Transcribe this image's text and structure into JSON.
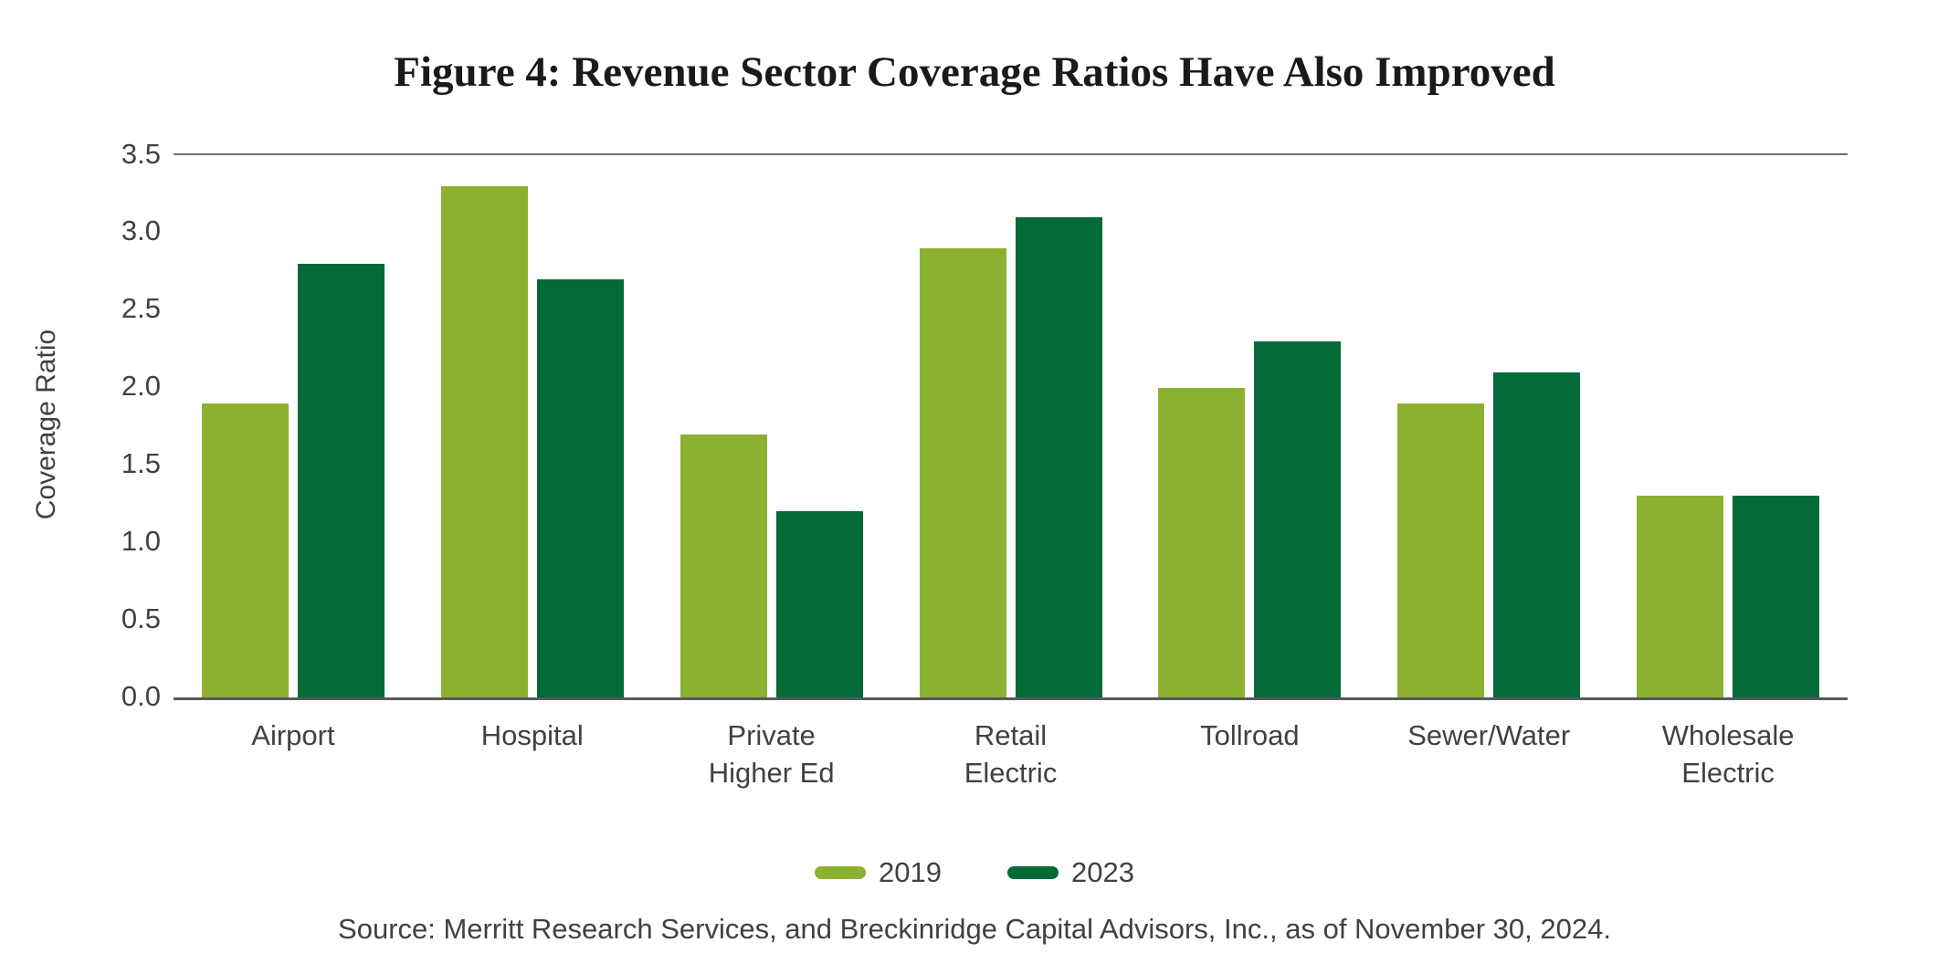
{
  "figure": {
    "title": "Figure 4: Revenue Sector Coverage Ratios Have Also Improved",
    "source": "Source: Merritt Research Services, and Breckinridge Capital Advisors, Inc., as of November 30, 2024."
  },
  "colors": {
    "series_2019": "#8CB131",
    "series_2023": "#046A38",
    "top_rule": "#6D6E71",
    "axis_line": "#58595B",
    "text": "#414042",
    "title_text": "#1A1A1A",
    "background": "#FFFFFF"
  },
  "chart_data": {
    "type": "bar",
    "title": "Figure 4: Revenue Sector Coverage Ratios Have Also Improved",
    "categories": [
      "Airport",
      "Hospital",
      "Private\nHigher Ed",
      "Retail\nElectric",
      "Tollroad",
      "Sewer/Water",
      "Wholesale\nElectric"
    ],
    "series": [
      {
        "name": "2019",
        "color": "#8CB131",
        "values": [
          1.9,
          3.3,
          1.7,
          2.9,
          2.0,
          1.9,
          1.3
        ]
      },
      {
        "name": "2023",
        "color": "#046A38",
        "values": [
          2.8,
          2.7,
          1.2,
          3.1,
          2.3,
          2.1,
          1.3
        ]
      }
    ],
    "xlabel": "",
    "ylabel": "Coverage Ratio",
    "ylim": [
      0,
      3.5
    ],
    "yticks": [
      "0.0",
      "0.5",
      "1.0",
      "1.5",
      "2.0",
      "2.5",
      "3.0",
      "3.5"
    ],
    "grid": "none (single reference rule at y=3.5 and baseline at y=0)",
    "legend_position": "bottom-center"
  }
}
